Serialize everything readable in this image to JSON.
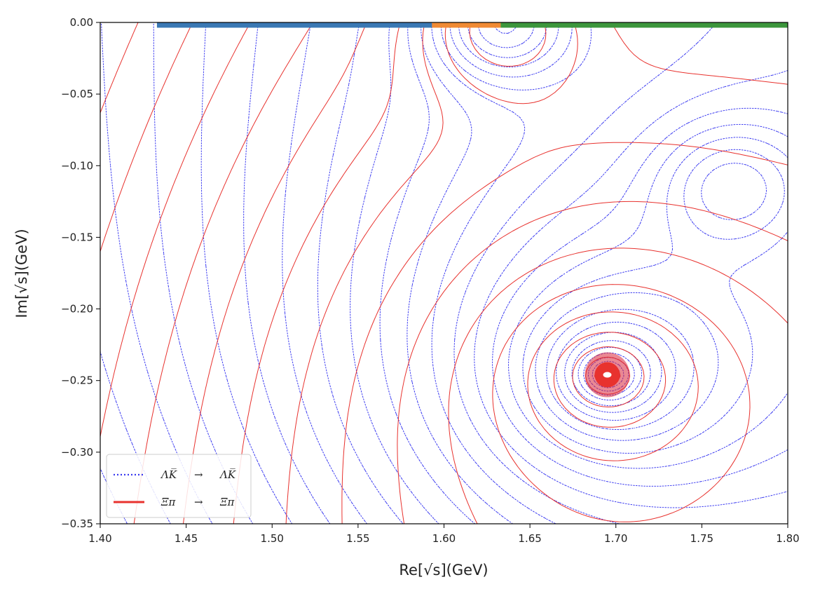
{
  "chart_data": {
    "type": "contour",
    "xlabel": "Re[√s](GeV)",
    "ylabel": "Im[√s](GeV)",
    "xlim": [
      1.4,
      1.8
    ],
    "ylim": [
      -0.35,
      0.0
    ],
    "x_ticks": [
      "1.40",
      "1.45",
      "1.50",
      "1.55",
      "1.60",
      "1.65",
      "1.70",
      "1.75",
      "1.80"
    ],
    "y_ticks": [
      "0.00",
      "−0.05",
      "−0.10",
      "−0.15",
      "−0.20",
      "−0.25",
      "−0.30",
      "−0.35"
    ],
    "grid": false,
    "legend_position": "lower-left",
    "series": [
      {
        "name": "ΛK̅ → ΛK̅",
        "style": "dotted",
        "color": "#3a3af0"
      },
      {
        "name": "Ξπ → Ξπ",
        "style": "solid",
        "color": "#e8322e"
      }
    ],
    "pole": {
      "x": 1.695,
      "y": -0.246
    },
    "secondary_features": [
      {
        "x": 1.633,
        "y": 0.0
      },
      {
        "x": 1.768,
        "y": -0.113
      }
    ],
    "threshold_segments": [
      {
        "x_start": 1.433,
        "x_end": 1.593,
        "color": "#3a78b4"
      },
      {
        "x_start": 1.593,
        "x_end": 1.633,
        "color": "#f08a34"
      },
      {
        "x_start": 1.633,
        "x_end": 1.8,
        "color": "#3c963c"
      }
    ]
  },
  "legend": {
    "item1": {
      "from": "ΛK̅",
      "arrow": "→",
      "to": "ΛK̅"
    },
    "item2": {
      "from": "Ξπ",
      "arrow": "→",
      "to": "Ξπ"
    }
  }
}
